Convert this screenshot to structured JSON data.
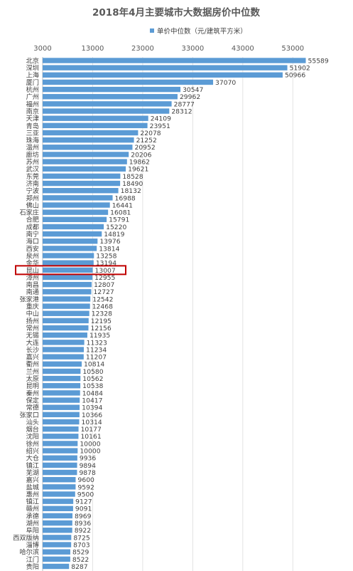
{
  "chart_data": {
    "type": "bar",
    "orientation": "horizontal",
    "title": "2018年4月主要城市大数据房价中位数",
    "legend_position": "top-right",
    "xlim": [
      3000,
      58000
    ],
    "xticks": [
      3000,
      13000,
      23000,
      33000,
      43000,
      53000
    ],
    "grid": true,
    "bar_color": "#5b9bd5",
    "highlight_color": "#c00000",
    "highlight_category": "昆山",
    "series": [
      {
        "name": "单价中位数（元/建筑平方米）",
        "values": [
          55589,
          51902,
          50966,
          37070,
          30547,
          29962,
          28777,
          28312,
          24109,
          23951,
          22078,
          21252,
          20952,
          20206,
          19862,
          19621,
          18528,
          18490,
          18132,
          16988,
          16441,
          16081,
          15791,
          15220,
          14819,
          13976,
          13814,
          13258,
          13194,
          13007,
          12955,
          12807,
          12727,
          12542,
          12468,
          12328,
          12195,
          12156,
          11935,
          11323,
          11234,
          11207,
          10814,
          10580,
          10562,
          10538,
          10484,
          10417,
          10394,
          10366,
          10314,
          10177,
          10161,
          10000,
          10000,
          9936,
          9894,
          9878,
          9600,
          9592,
          9500,
          9127,
          9091,
          8969,
          8936,
          8922,
          8725,
          8703,
          8529,
          8522,
          8287
        ]
      }
    ],
    "categories": [
      "北京",
      "深圳",
      "上海",
      "厦门",
      "杭州",
      "广州",
      "福州",
      "南京",
      "天津",
      "青岛",
      "三亚",
      "珠海",
      "温州",
      "廊坊",
      "苏州",
      "武汉",
      "东莞",
      "济南",
      "宁波",
      "郑州",
      "佛山",
      "石家庄",
      "合肥",
      "成都",
      "南宁",
      "海口",
      "西安",
      "泉州",
      "金华",
      "昆山",
      "漳州",
      "南昌",
      "南通",
      "张家港",
      "重庆",
      "中山",
      "扬州",
      "常州",
      "无锡",
      "大连",
      "长沙",
      "嘉兴",
      "衢州",
      "兰州",
      "太原",
      "昆明",
      "秦州",
      "保定",
      "常德",
      "张家口",
      "汕头",
      "烟台",
      "沈阳",
      "徐州",
      "绍兴",
      "大仓",
      "镇江",
      "芜湖",
      "嘉兴",
      "盐城",
      "惠州",
      "镇江",
      "赣州",
      "承德",
      "湖州",
      "阜阳",
      "西双版纳",
      "淄博",
      "哈尔滨",
      "江门",
      "贵阳"
    ]
  }
}
